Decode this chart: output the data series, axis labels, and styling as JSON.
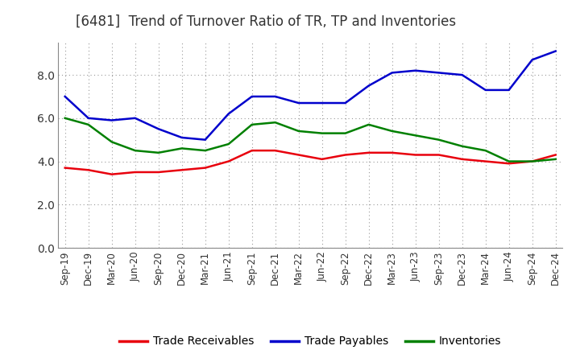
{
  "title": "[6481]  Trend of Turnover Ratio of TR, TP and Inventories",
  "x_labels": [
    "Sep-19",
    "Dec-19",
    "Mar-20",
    "Jun-20",
    "Sep-20",
    "Dec-20",
    "Mar-21",
    "Jun-21",
    "Sep-21",
    "Dec-21",
    "Mar-22",
    "Jun-22",
    "Sep-22",
    "Dec-22",
    "Mar-23",
    "Jun-23",
    "Sep-23",
    "Dec-23",
    "Mar-24",
    "Jun-24",
    "Sep-24",
    "Dec-24"
  ],
  "trade_receivables": [
    3.7,
    3.6,
    3.4,
    3.5,
    3.5,
    3.6,
    3.7,
    4.0,
    4.5,
    4.5,
    4.3,
    4.1,
    4.3,
    4.4,
    4.4,
    4.3,
    4.3,
    4.1,
    4.0,
    3.9,
    4.0,
    4.3
  ],
  "trade_payables": [
    7.0,
    6.0,
    5.9,
    6.0,
    5.5,
    5.1,
    5.0,
    6.2,
    7.0,
    7.0,
    6.7,
    6.7,
    6.7,
    7.5,
    8.1,
    8.2,
    8.1,
    8.0,
    7.3,
    7.3,
    8.7,
    9.1
  ],
  "inventories": [
    6.0,
    5.7,
    4.9,
    4.5,
    4.4,
    4.6,
    4.5,
    4.8,
    5.7,
    5.8,
    5.4,
    5.3,
    5.3,
    5.7,
    5.4,
    5.2,
    5.0,
    4.7,
    4.5,
    4.0,
    4.0,
    4.1
  ],
  "ylim": [
    0.0,
    9.5
  ],
  "yticks": [
    0.0,
    2.0,
    4.0,
    6.0,
    8.0
  ],
  "line_color_tr": "#e8000d",
  "line_color_tp": "#0000cc",
  "line_color_inv": "#008000",
  "background_color": "#ffffff",
  "plot_bg_color": "#ffffff",
  "legend_labels": [
    "Trade Receivables",
    "Trade Payables",
    "Inventories"
  ],
  "grid_color": "#999999",
  "title_fontsize": 12,
  "axis_fontsize": 8.5,
  "legend_fontsize": 10,
  "title_color": "#333333"
}
